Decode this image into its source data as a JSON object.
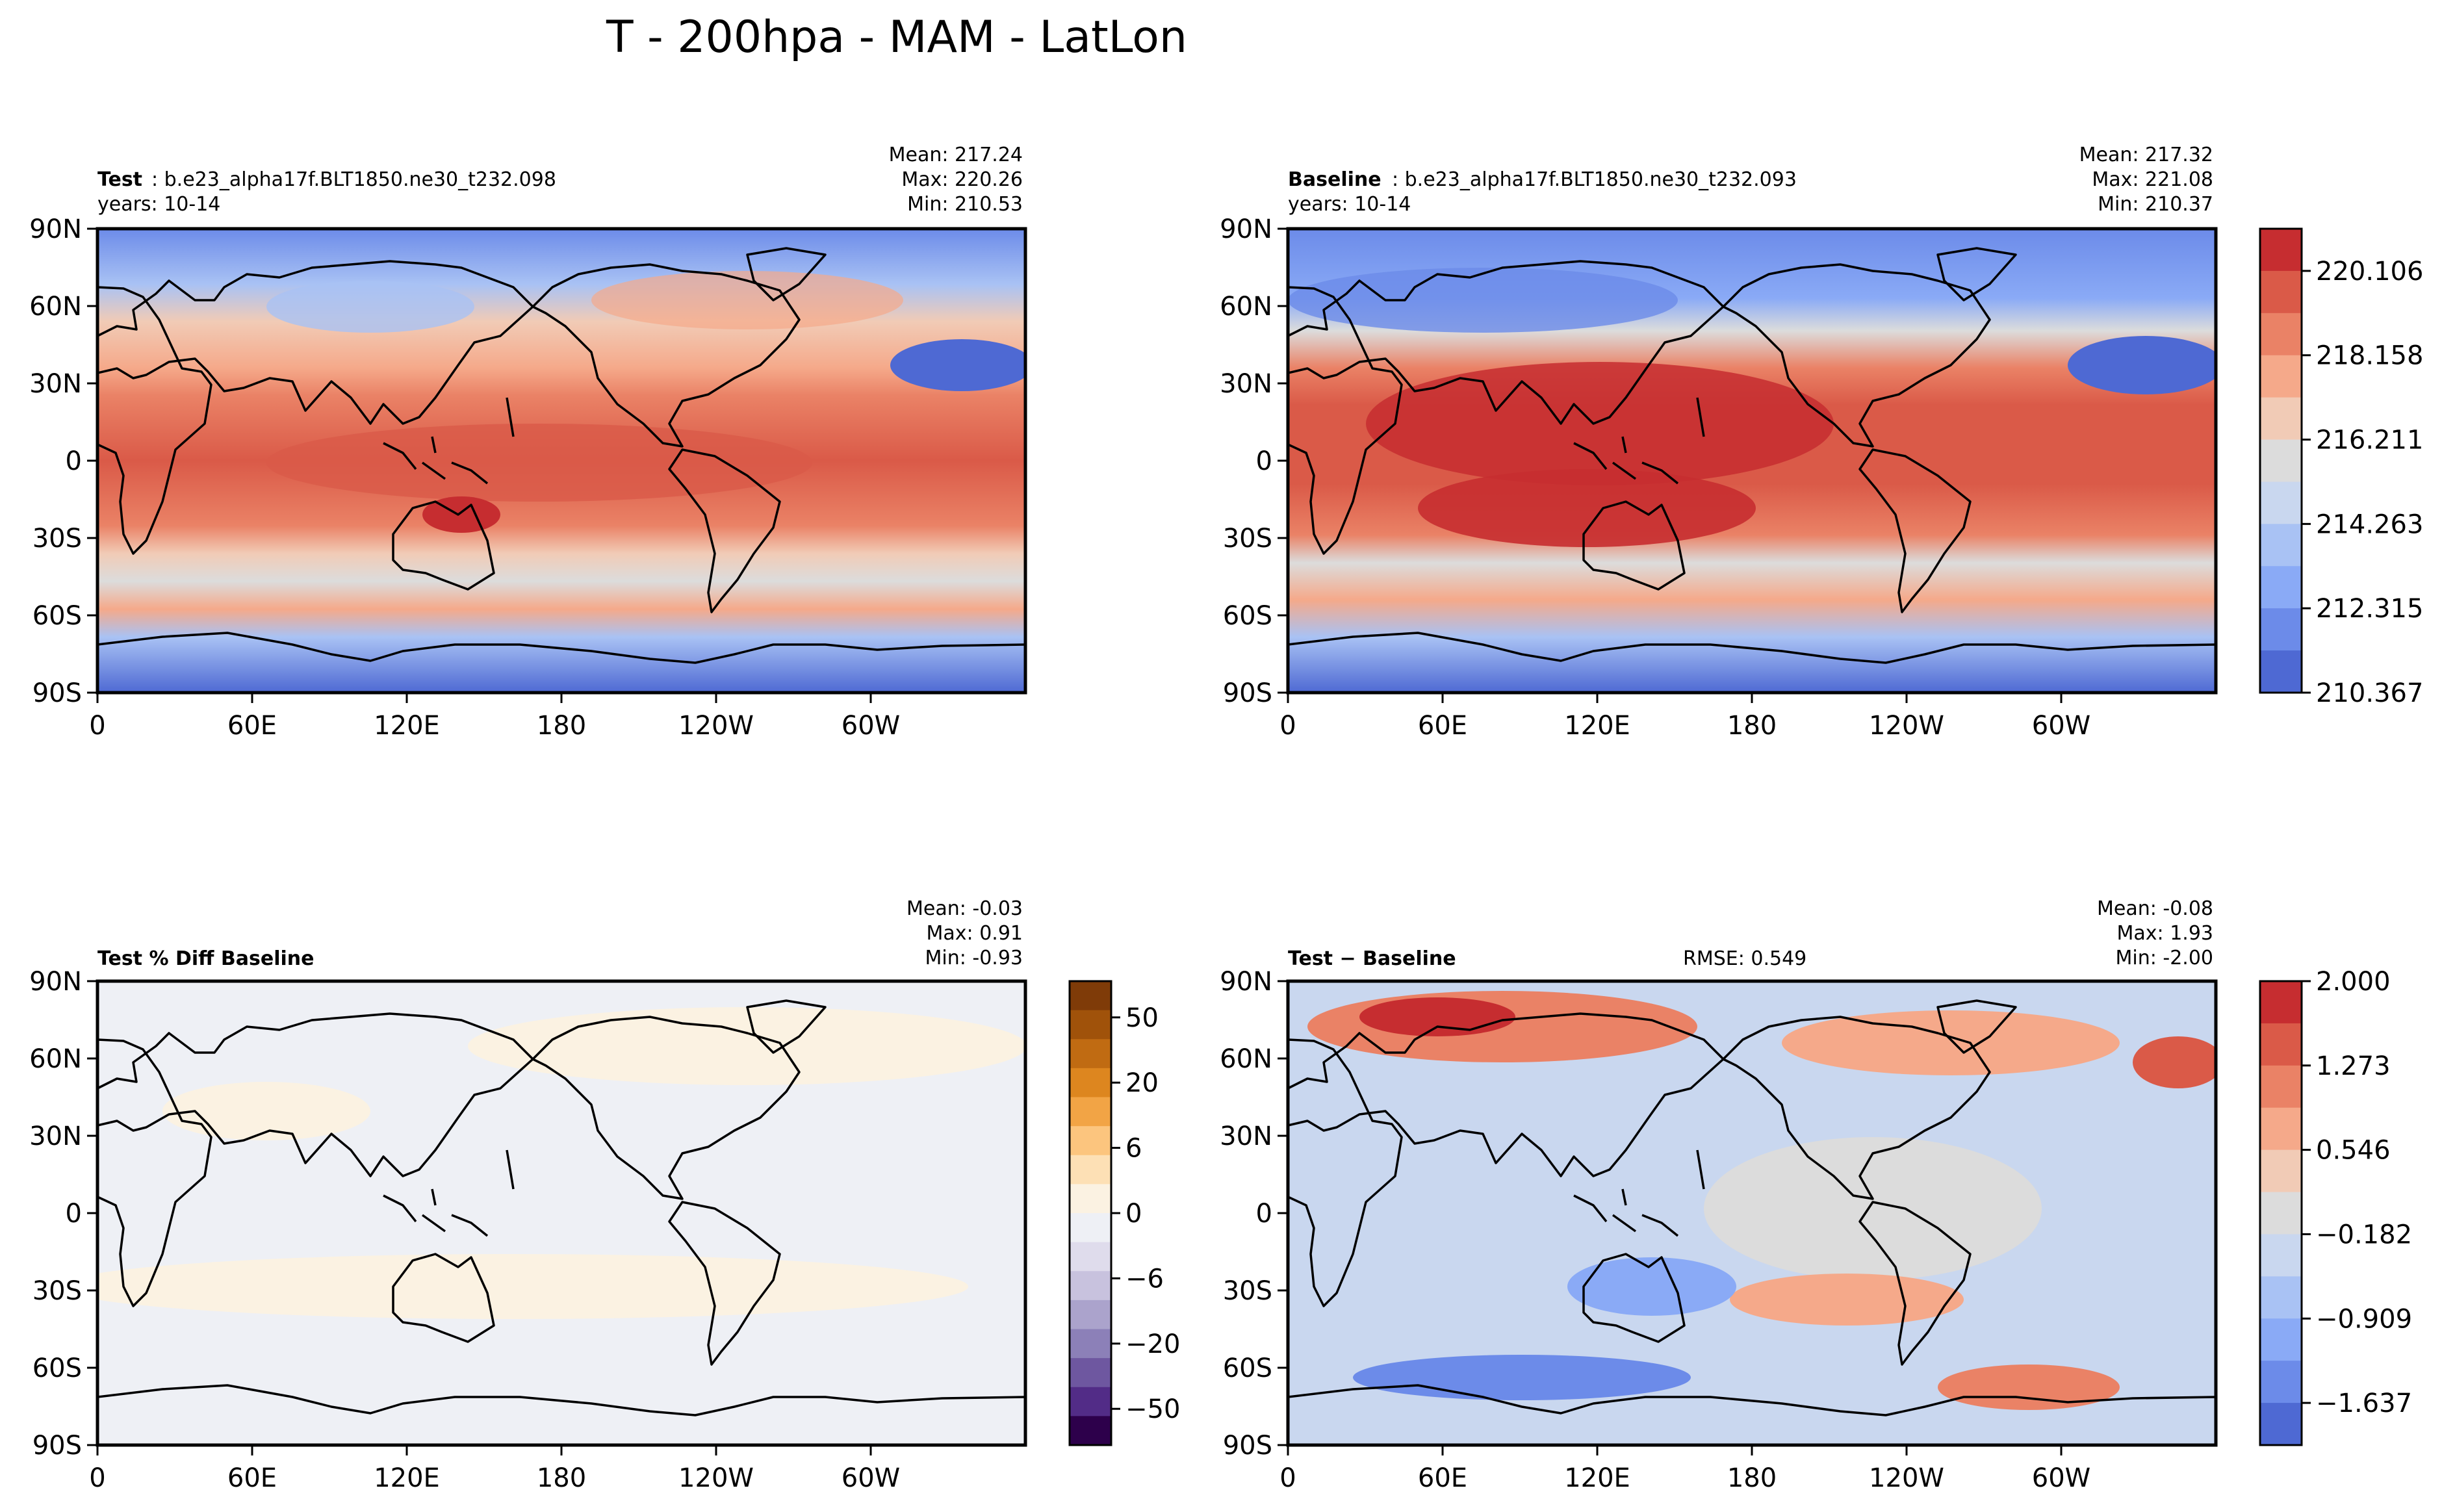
{
  "figure_title": "T - 200hpa - MAM - LatLon",
  "chart_data": [
    {
      "type": "contour-map",
      "id": "test",
      "title_bold": "Test",
      "title_rest": ": b.e23_alpha17f.BLT1850.ne30_t232.098",
      "subtitle": "years: 10-14",
      "stats": [
        "Mean: 217.24",
        "Max: 220.26",
        "Min: 210.53"
      ],
      "xlabels": [
        "0",
        "60E",
        "120E",
        "180",
        "120W",
        "60W"
      ],
      "ylabels": [
        "90N",
        "60N",
        "30N",
        "0",
        "30S",
        "60S",
        "90S"
      ],
      "xlim": [
        0,
        360
      ],
      "ylim": [
        -90,
        90
      ],
      "mean": 217.24,
      "max": 220.26,
      "min": 210.53,
      "colorbar": "shared-absolute"
    },
    {
      "type": "contour-map",
      "id": "baseline",
      "title_bold": "Baseline",
      "title_rest": ": b.e23_alpha17f.BLT1850.ne30_t232.093",
      "subtitle": "years: 10-14",
      "stats": [
        "Mean: 217.32",
        "Max: 221.08",
        "Min: 210.37"
      ],
      "xlabels": [
        "0",
        "60E",
        "120E",
        "180",
        "120W",
        "60W"
      ],
      "ylabels": [
        "90N",
        "60N",
        "30N",
        "0",
        "30S",
        "60S",
        "90S"
      ],
      "xlim": [
        0,
        360
      ],
      "ylim": [
        -90,
        90
      ],
      "mean": 217.32,
      "max": 221.08,
      "min": 210.37,
      "colorbar_ticks": [
        "220.106",
        "218.158",
        "216.211",
        "214.263",
        "212.315",
        "210.367"
      ],
      "colorbar_colors": [
        "#c62d30",
        "#da5a48",
        "#ea8266",
        "#f5a98a",
        "#f1cbb6",
        "#dcdcdc",
        "#c9d7ef",
        "#a9c2f4",
        "#8aaaf6",
        "#6c8be9",
        "#4e69d3"
      ]
    },
    {
      "type": "contour-map",
      "id": "pct-diff",
      "title_bold": "Test % Diff Baseline",
      "stats": [
        "Mean: -0.03",
        "Max:  0.91",
        "Min: -0.93"
      ],
      "xlabels": [
        "0",
        "60E",
        "120E",
        "180",
        "120W",
        "60W"
      ],
      "ylabels": [
        "90N",
        "60N",
        "30N",
        "0",
        "30S",
        "60S",
        "90S"
      ],
      "xlim": [
        0,
        360
      ],
      "ylim": [
        -90,
        90
      ],
      "mean": -0.03,
      "max": 0.91,
      "min": -0.93,
      "colorbar_ticks": [
        "50",
        "20",
        "6",
        "0",
        "−6",
        "−20",
        "−50"
      ],
      "colorbar_colors": [
        "#7f3b08",
        "#a0520a",
        "#c06b12",
        "#dd861f",
        "#f2a445",
        "#fcc57e",
        "#fde0b5",
        "#fbf2e2",
        "#eef0f5",
        "#dfdcec",
        "#c8c2de",
        "#aba3cc",
        "#8c80b8",
        "#6e57a0",
        "#522c87",
        "#2d004b"
      ]
    },
    {
      "type": "contour-map",
      "id": "abs-diff",
      "title_bold": "Test − Baseline",
      "rmse": "RMSE: 0.549",
      "stats": [
        "Mean: -0.08",
        "Max:  1.93",
        "Min: -2.00"
      ],
      "xlabels": [
        "0",
        "60E",
        "120E",
        "180",
        "120W",
        "60W"
      ],
      "ylabels": [
        "90N",
        "60N",
        "30N",
        "0",
        "30S",
        "60S",
        "90S"
      ],
      "xlim": [
        0,
        360
      ],
      "ylim": [
        -90,
        90
      ],
      "mean": -0.08,
      "max": 1.93,
      "min": -2.0,
      "colorbar_ticks": [
        "2.000",
        "1.273",
        "0.546",
        "−0.182",
        "−0.909",
        "−1.637"
      ],
      "colorbar_colors": [
        "#c62d30",
        "#da5a48",
        "#ea8266",
        "#f5a98a",
        "#f1cbb6",
        "#dcdcdc",
        "#c9d7ef",
        "#a9c2f4",
        "#8aaaf6",
        "#6c8be9",
        "#4e69d3"
      ]
    }
  ]
}
